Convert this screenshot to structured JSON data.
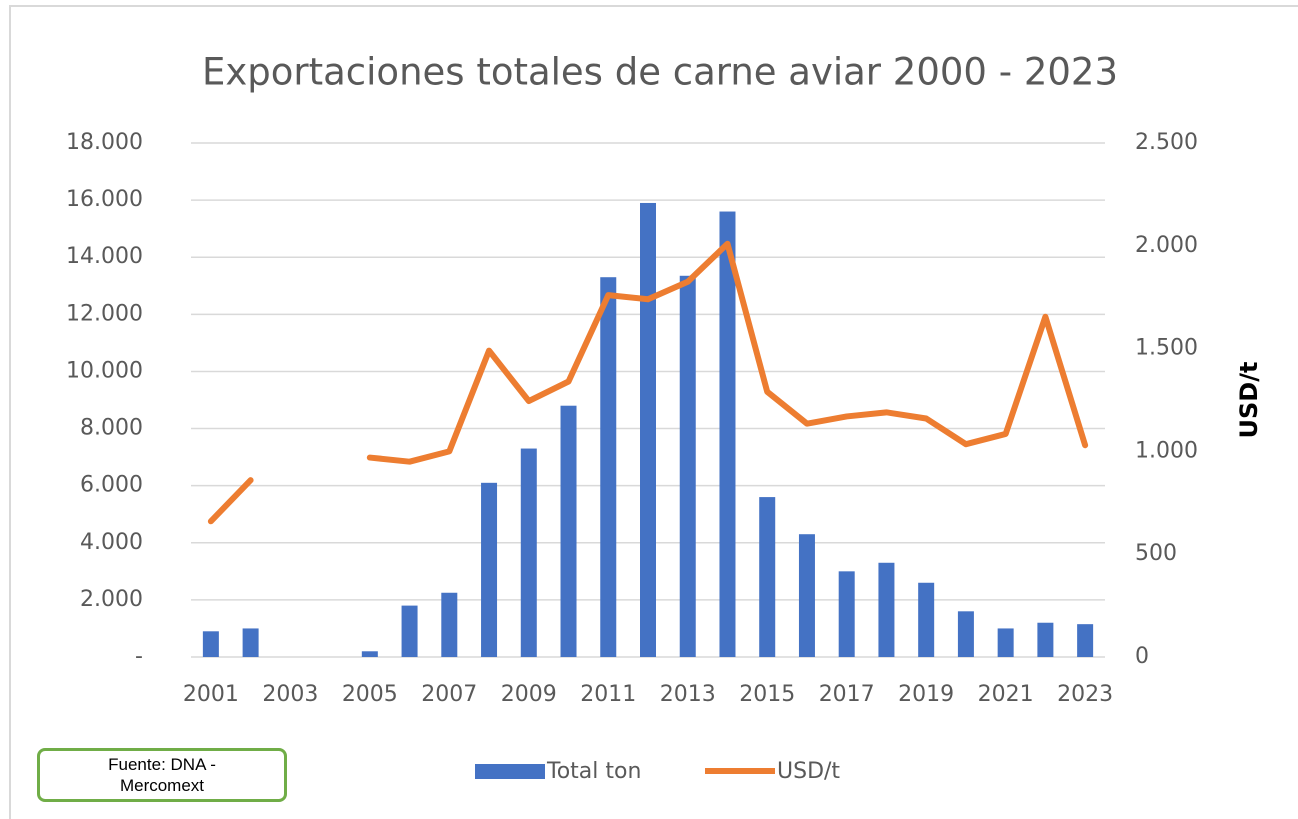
{
  "chart_data": {
    "type": "bar-line",
    "title": "Exportaciones totales de carne aviar 2000 - 2023",
    "y2label": "USD/t",
    "source": "Fuente: DNA - Mercomext",
    "x": [
      2001,
      2002,
      2003,
      2004,
      2005,
      2006,
      2007,
      2008,
      2009,
      2010,
      2011,
      2012,
      2013,
      2014,
      2015,
      2016,
      2017,
      2018,
      2019,
      2020,
      2021,
      2022,
      2023
    ],
    "xlim": [
      2000.5,
      2023.5
    ],
    "xticks": [
      2001,
      2003,
      2005,
      2007,
      2009,
      2011,
      2013,
      2015,
      2017,
      2019,
      2021,
      2023
    ],
    "series": [
      {
        "name": "Total ton",
        "type": "bar",
        "color": "#4472c4",
        "values": [
          900,
          1000,
          null,
          null,
          200,
          1800,
          2250,
          6100,
          7300,
          8800,
          13300,
          15900,
          13350,
          15600,
          5600,
          4300,
          3000,
          3300,
          2600,
          1600,
          1000,
          1200,
          1150
        ]
      },
      {
        "name": "USD/t",
        "type": "line",
        "axis": "y2",
        "color": "#ed7d31",
        "values": [
          660,
          860,
          null,
          null,
          970,
          950,
          1000,
          1490,
          1245,
          1340,
          1760,
          1740,
          1825,
          2010,
          1290,
          1135,
          1170,
          1190,
          1160,
          1035,
          1085,
          1655,
          1030
        ]
      }
    ],
    "ylim": [
      0,
      18000
    ],
    "yticks": [
      {
        "value": 0,
        "label": "-"
      },
      {
        "value": 2000,
        "label": "2.000"
      },
      {
        "value": 4000,
        "label": "4.000"
      },
      {
        "value": 6000,
        "label": "6.000"
      },
      {
        "value": 8000,
        "label": "8.000"
      },
      {
        "value": 10000,
        "label": "10.000"
      },
      {
        "value": 12000,
        "label": "12.000"
      },
      {
        "value": 14000,
        "label": "14.000"
      },
      {
        "value": 16000,
        "label": "16.000"
      },
      {
        "value": 18000,
        "label": "18.000"
      }
    ],
    "y2lim": [
      0,
      2500
    ],
    "y2ticks": [
      0,
      500,
      {
        "value": 1000,
        "label": "1.000"
      },
      {
        "value": 1500,
        "label": "1.500"
      },
      {
        "value": 2000,
        "label": "2.000"
      },
      {
        "value": 2500,
        "label": "2.500"
      }
    ],
    "grid": true,
    "legend": "bottom"
  }
}
